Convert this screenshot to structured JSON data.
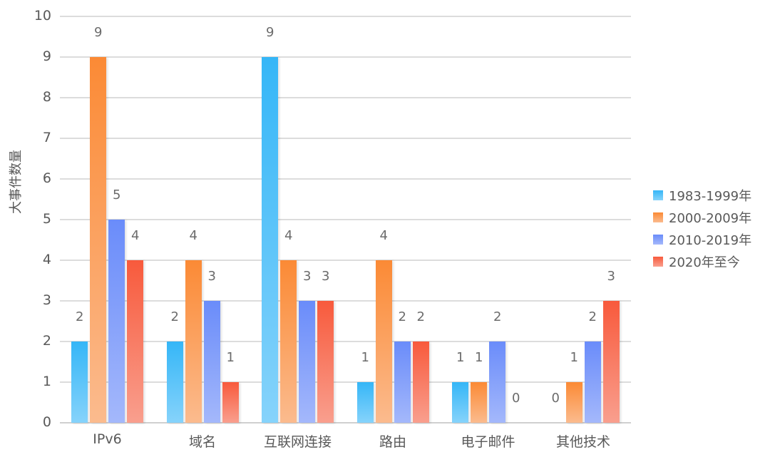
{
  "chart_data": {
    "type": "bar",
    "title": "",
    "xlabel": "",
    "ylabel": "大事件数量",
    "ylim": [
      0,
      10
    ],
    "yticks": [
      0,
      1,
      2,
      3,
      4,
      5,
      6,
      7,
      8,
      9,
      10
    ],
    "grid": true,
    "legend_position": "right",
    "categories": [
      "IPv6",
      "域名",
      "互联网连接",
      "路由",
      "电子邮件",
      "其他技术"
    ],
    "series": [
      {
        "name": "1983-1999年",
        "color": "#35b6f7",
        "color_light": "#86d3fb",
        "values": [
          2,
          2,
          9,
          1,
          1,
          0
        ]
      },
      {
        "name": "2000-2009年",
        "color": "#fb8a35",
        "color_light": "#fbbb8e",
        "values": [
          9,
          4,
          4,
          4,
          1,
          1
        ]
      },
      {
        "name": "2010-2019年",
        "color": "#6a8cfa",
        "color_light": "#a4b8fb",
        "values": [
          5,
          3,
          3,
          2,
          2,
          2
        ]
      },
      {
        "name": "2020年至今",
        "color": "#f85a3c",
        "color_light": "#f99f8e",
        "values": [
          4,
          1,
          3,
          2,
          0,
          3
        ]
      }
    ]
  }
}
